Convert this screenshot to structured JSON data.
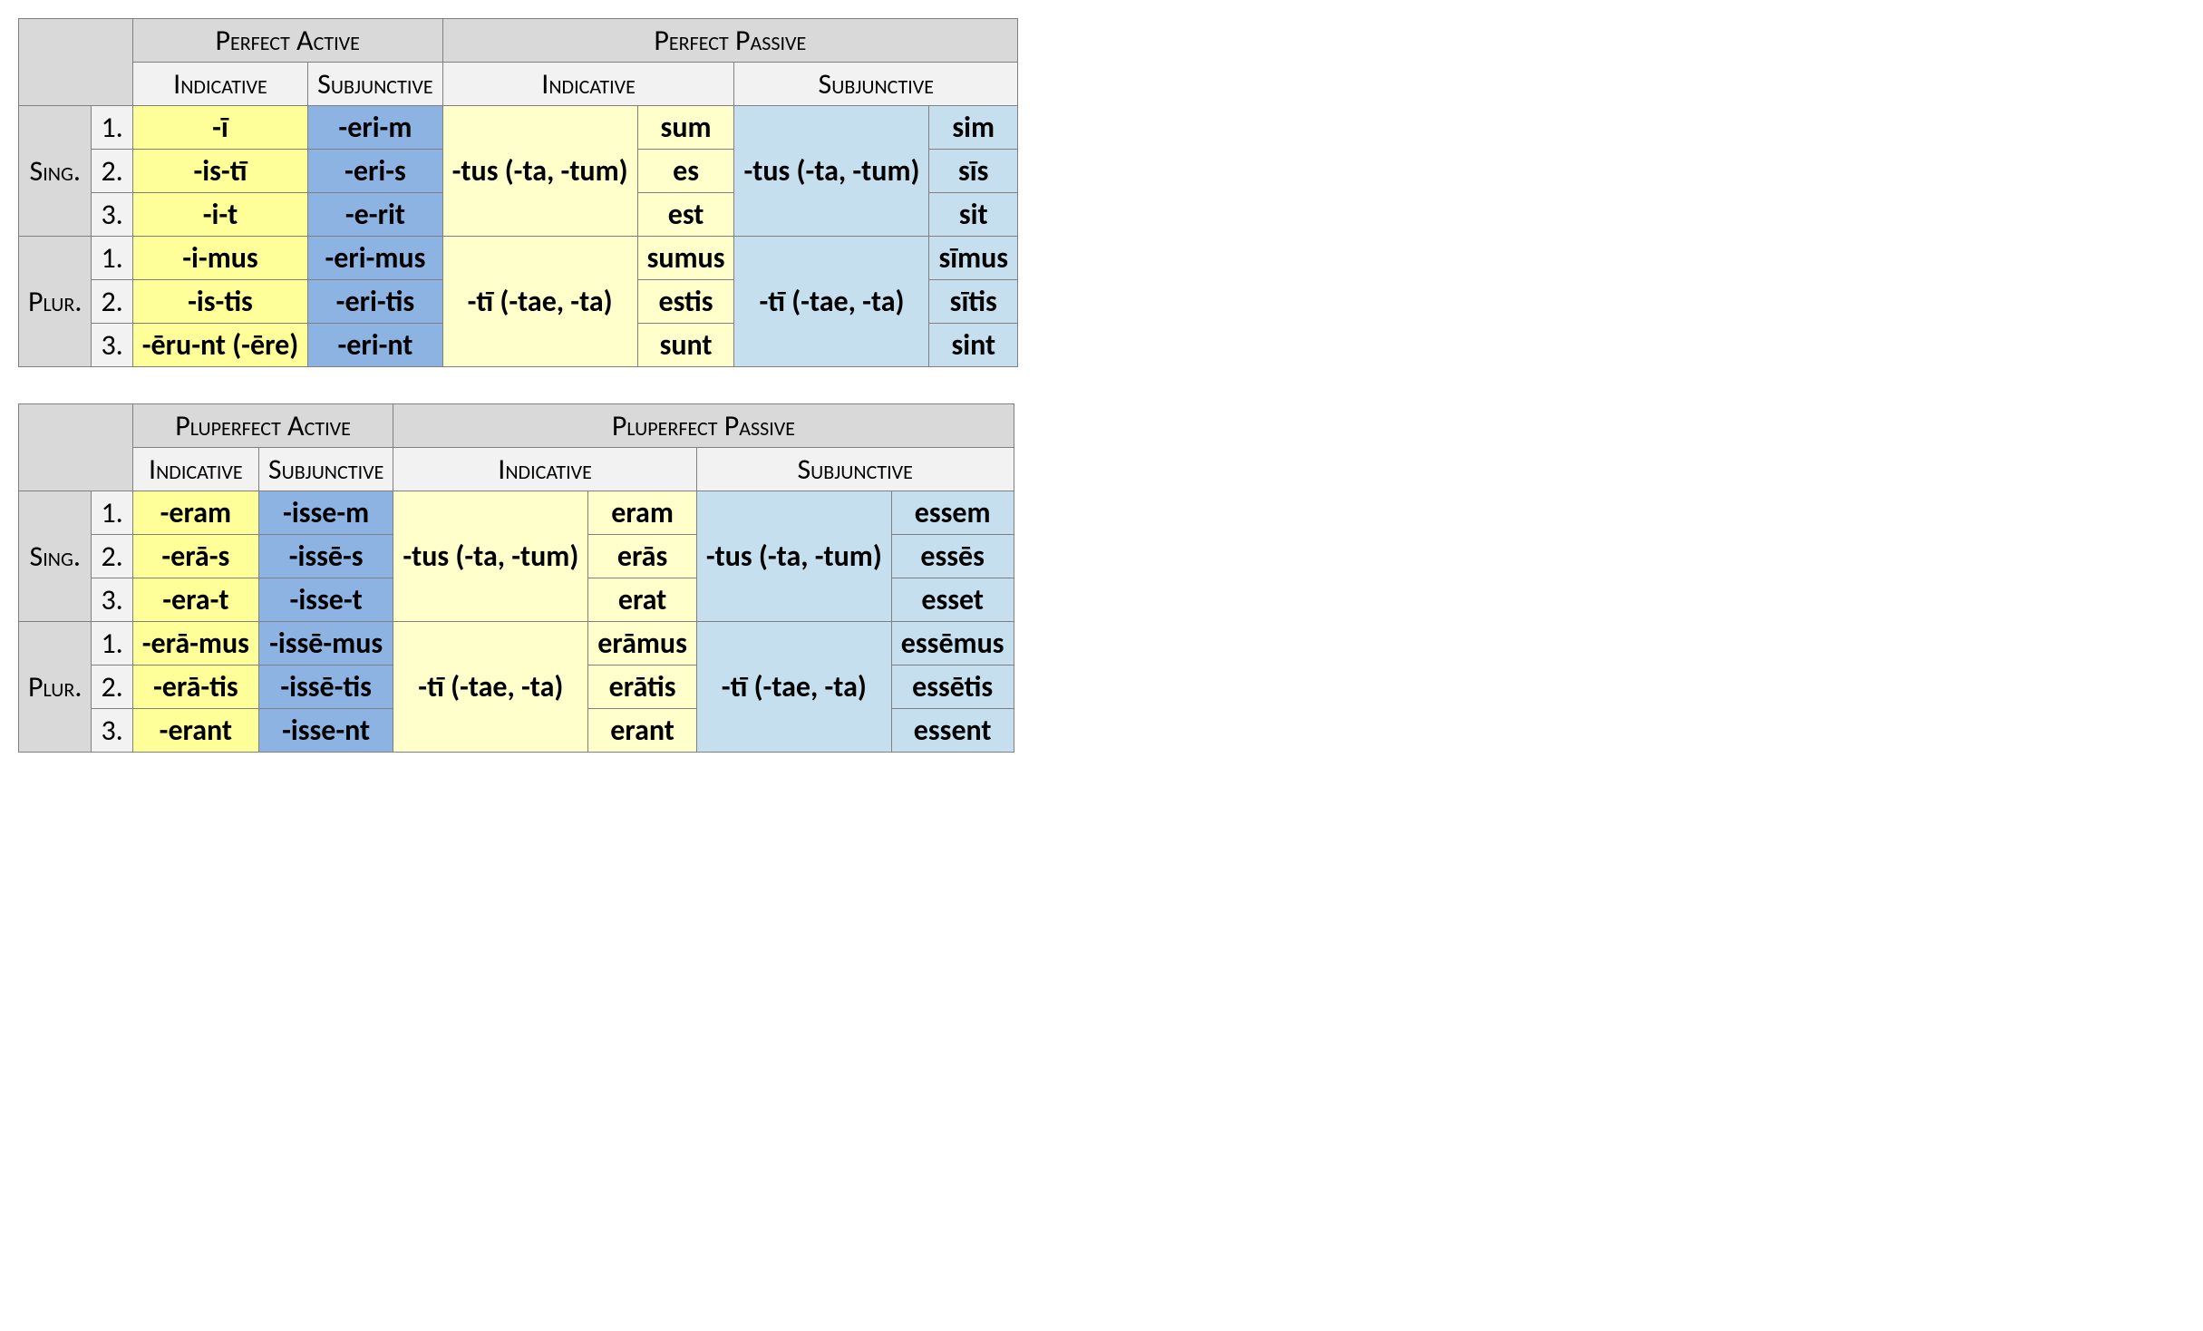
{
  "colors": {
    "bg_page": "#ffffff",
    "bg_corner": "#d9d9d9",
    "bg_hdr_top": "#d9d9d9",
    "bg_hdr_sub": "#f2f2f2",
    "bg_row_lbl": "#d9d9d9",
    "bg_num": "#f2f2f2",
    "yellow_strong": "#ffff99",
    "blue_strong": "#8db3e2",
    "yellow_light": "#ffffcc",
    "blue_light": "#c6dfef",
    "border": "#808080"
  },
  "font": {
    "header_size_pt": 24,
    "cell_size_pt": 24,
    "small_caps": true,
    "cell_weight": "bold"
  },
  "t1": {
    "active_title": "Perfect Active",
    "passive_title": "Perfect Passive",
    "indicative": "Indicative",
    "subjunctive": "Subjunctive",
    "sing": "Sing.",
    "plur": "Plur.",
    "n1": "1.",
    "n2": "2.",
    "n3": "3.",
    "act_ind": [
      "-ī",
      "-is-tī",
      "-i-t",
      "-i-mus",
      "-is-tis",
      "-ēru-nt (-ēre)"
    ],
    "act_subj": [
      "-eri-m",
      "-eri-s",
      "-e-rit",
      "-eri-mus",
      "-eri-tis",
      "-eri-nt"
    ],
    "pas_part_sing": "-tus (-ta, -tum)",
    "pas_part_plur": "-tī (-tae, -ta)",
    "pas_ind_aux": [
      "sum",
      "es",
      "est",
      "sumus",
      "estis",
      "sunt"
    ],
    "pas_subj_aux": [
      "sim",
      "sīs",
      "sit",
      "sīmus",
      "sītis",
      "sint"
    ]
  },
  "t2": {
    "active_title": "Pluperfect Active",
    "passive_title": "Pluperfect Passive",
    "indicative": "Indicative",
    "subjunctive": "Subjunctive",
    "sing": "Sing.",
    "plur": "Plur.",
    "n1": "1.",
    "n2": "2.",
    "n3": "3.",
    "act_ind": [
      "-eram",
      "-erā-s",
      "-era-t",
      "-erā-mus",
      "-erā-tis",
      "-erant"
    ],
    "act_subj": [
      "-isse-m",
      "-issē-s",
      "-isse-t",
      "-issē-mus",
      "-issē-tis",
      "-isse-nt"
    ],
    "pas_part_sing": "-tus (-ta, -tum)",
    "pas_part_plur": "-tī (-tae, -ta)",
    "pas_ind_aux": [
      "eram",
      "erās",
      "erat",
      "erāmus",
      "erātis",
      "erant"
    ],
    "pas_subj_aux": [
      "essem",
      "essēs",
      "esset",
      "essēmus",
      "essētis",
      "essent"
    ]
  }
}
